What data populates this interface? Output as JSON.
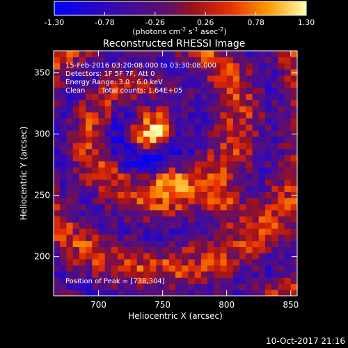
{
  "chart_data": {
    "type": "heatmap",
    "title": "Reconstructed RHESSI Image",
    "xlabel": "Heliocentric X (arcsec)",
    "ylabel": "Heliocentric Y (arcsec)",
    "xlim": [
      665,
      855
    ],
    "ylim": [
      168,
      368
    ],
    "x_ticks": [
      700,
      750,
      800,
      850
    ],
    "y_ticks": [
      200,
      250,
      300,
      350
    ],
    "colorbar": {
      "min": -1.3,
      "max": 1.3,
      "ticks": [
        "-1.30",
        "-0.78",
        "-0.26",
        "0.26",
        "0.78",
        "1.30"
      ],
      "unit_prefix": "(photons cm",
      "unit_exp1": "-2",
      "unit_mid": " s",
      "unit_exp2": "-1",
      "unit_mid2": " asec",
      "unit_exp3": "-2",
      "unit_suffix": ")"
    },
    "annotations": [
      "15-Feb-2016 03:20:08.000 to 03:30:08.000",
      "Detectors: 1F 5F 7F, Att 0",
      "Energy Range: 3.0 - 6.0 keV",
      "Clean",
      "Total counts: 1.64E+05"
    ],
    "peak_label": "Position of Peak = [738,304]",
    "peak": {
      "x": 738,
      "y": 304
    },
    "sources": [
      {
        "x": 738,
        "y": 304,
        "peak": 1.3
      },
      {
        "x": 755,
        "y": 262,
        "peak": 1.1
      },
      {
        "x": 800,
        "y": 240,
        "peak": 1.0
      }
    ],
    "footer_date": "10-Oct-2017 21:16"
  }
}
